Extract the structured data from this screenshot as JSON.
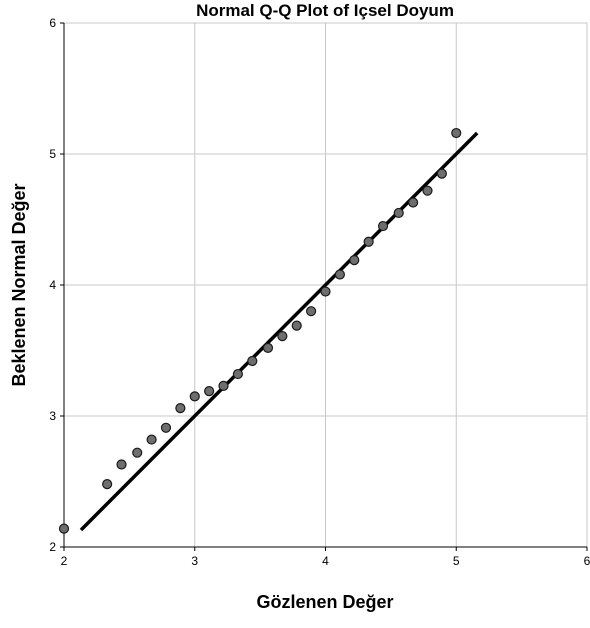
{
  "chart_data": {
    "type": "scatter",
    "title": "Normal Q-Q Plot of Içsel Doyum",
    "xlabel": "Gözlenen Değer",
    "ylabel": "Beklenen Normal Değer",
    "xlim": [
      2,
      6
    ],
    "ylim": [
      2,
      6
    ],
    "x_ticks": [
      "2",
      "3",
      "4",
      "5",
      "6"
    ],
    "y_ticks": [
      "2",
      "3",
      "4",
      "5",
      "6"
    ],
    "grid": true,
    "legend": "none",
    "series": [
      {
        "points": [
          [
            2.0,
            2.14
          ],
          [
            2.33,
            2.48
          ],
          [
            2.44,
            2.63
          ],
          [
            2.56,
            2.72
          ],
          [
            2.67,
            2.82
          ],
          [
            2.78,
            2.91
          ],
          [
            2.89,
            3.06
          ],
          [
            3.0,
            3.15
          ],
          [
            3.11,
            3.19
          ],
          [
            3.22,
            3.23
          ],
          [
            3.33,
            3.32
          ],
          [
            3.44,
            3.42
          ],
          [
            3.56,
            3.52
          ],
          [
            3.67,
            3.61
          ],
          [
            3.78,
            3.69
          ],
          [
            3.89,
            3.8
          ],
          [
            4.0,
            3.95
          ],
          [
            4.11,
            4.08
          ],
          [
            4.22,
            4.19
          ],
          [
            4.33,
            4.33
          ],
          [
            4.44,
            4.45
          ],
          [
            4.56,
            4.55
          ],
          [
            4.67,
            4.63
          ],
          [
            4.78,
            4.72
          ],
          [
            4.89,
            4.85
          ],
          [
            5.0,
            5.16
          ]
        ]
      }
    ],
    "reference_line": {
      "x": [
        2.13,
        5.16
      ],
      "y": [
        2.13,
        5.16
      ]
    },
    "colors": {
      "point_fill": "#6e6e6e",
      "point_stroke": "#1a1a1a",
      "line": "#000000",
      "grid": "#c8c8c8",
      "axis": "#000000"
    }
  }
}
